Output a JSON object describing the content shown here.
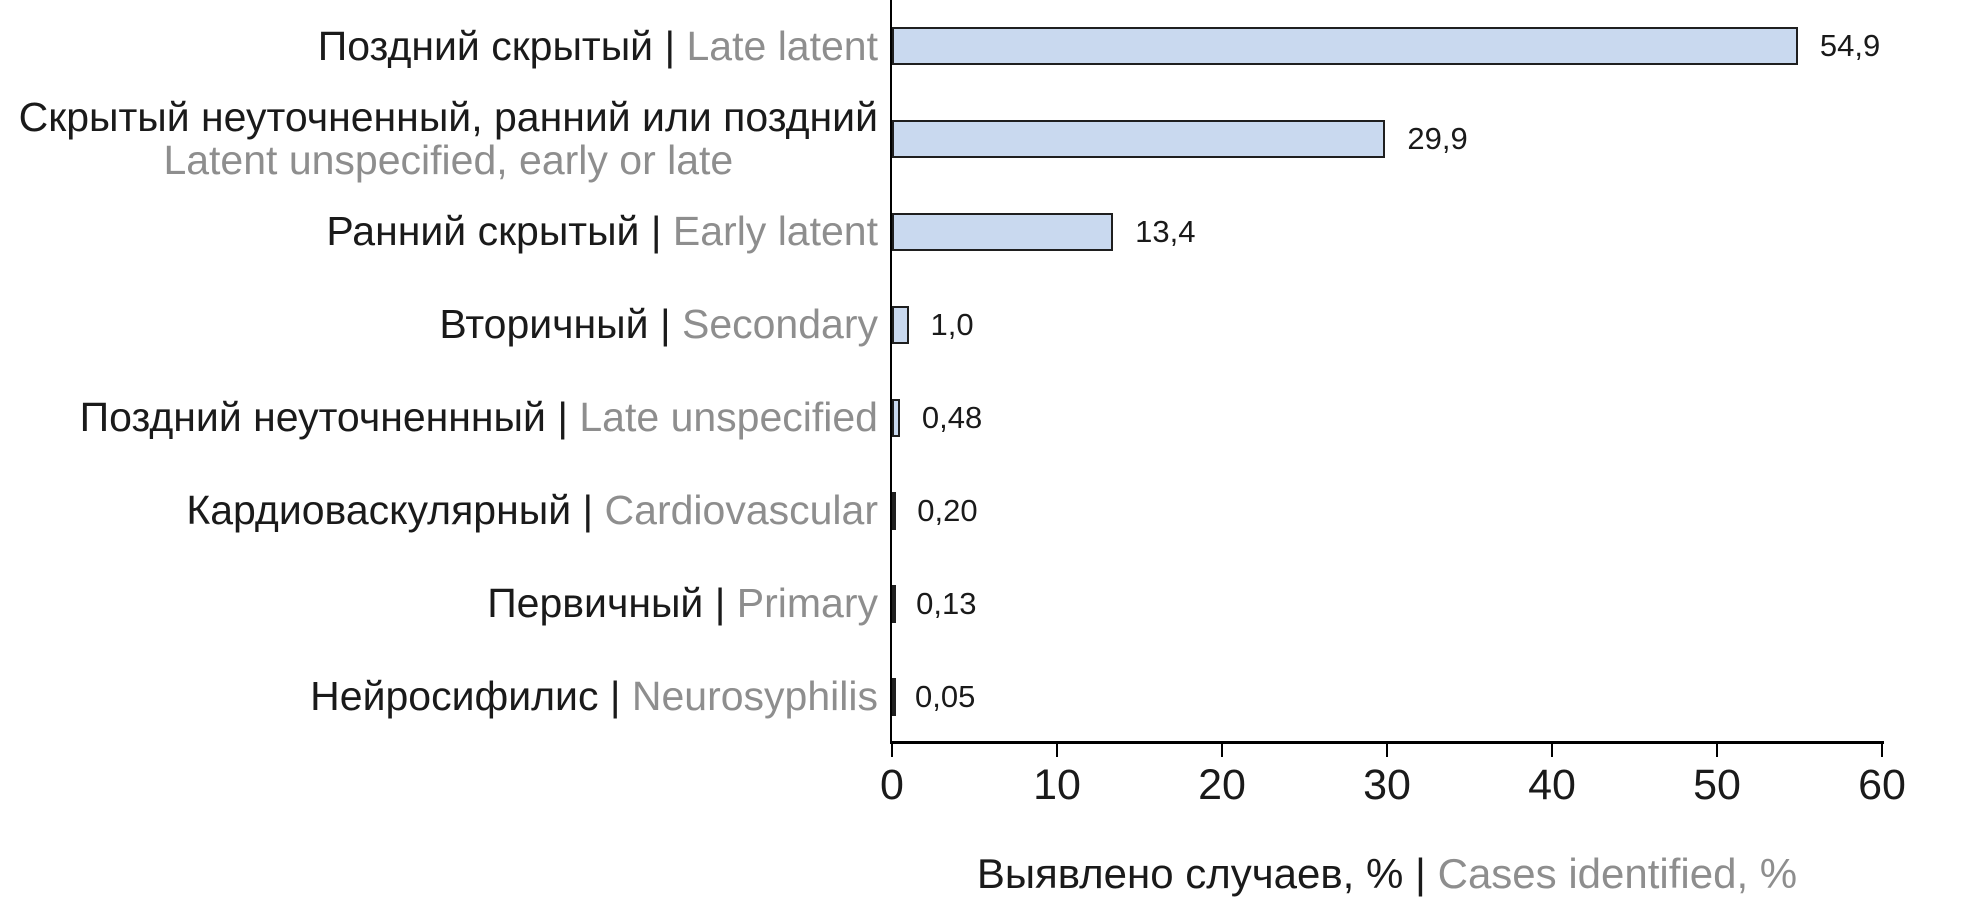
{
  "chart_data": {
    "type": "bar",
    "orientation": "horizontal",
    "title": "",
    "xlabel": {
      "ru": "Выявлено случаев, %",
      "separator": "|",
      "en": "Cases identified, %"
    },
    "xlim": [
      0,
      60
    ],
    "xticks": [
      0,
      10,
      20,
      30,
      40,
      50,
      60
    ],
    "xtick_labels": [
      "0",
      "10",
      "20",
      "30",
      "40",
      "50",
      "60"
    ],
    "grid": false,
    "legend": "none",
    "categories": [
      {
        "ru": "Поздний скрытый",
        "en": "Late latent",
        "two_line": false
      },
      {
        "ru": "Скрытый неуточненный, ранний или поздний",
        "en": "Latent unspecified, early or late",
        "two_line": true
      },
      {
        "ru": "Ранний скрытый",
        "en": "Early latent",
        "two_line": false
      },
      {
        "ru": "Вторичный",
        "en": "Secondary",
        "two_line": false
      },
      {
        "ru": "Поздний неуточненнный",
        "en": "Late unspecified",
        "two_line": false
      },
      {
        "ru": "Кардиоваскулярный",
        "en": "Cardiovascular",
        "two_line": false
      },
      {
        "ru": "Первичный",
        "en": "Primary",
        "two_line": false
      },
      {
        "ru": "Нейросифилис",
        "en": "Neurosyphilis",
        "two_line": false
      }
    ],
    "values": [
      54.9,
      29.9,
      13.4,
      1.0,
      0.48,
      0.2,
      0.13,
      0.05
    ],
    "value_labels": [
      "54,9",
      "29,9",
      "13,4",
      "1,0",
      "0,48",
      "0,20",
      "0,13",
      "0,05"
    ],
    "label_separator": "|",
    "colors": {
      "bar_fill": "#c9d9ef",
      "bar_border": "#1f1f1f",
      "axis": "#000000",
      "text_primary": "#1a1a1a",
      "text_secondary": "#8e8e8e",
      "background": "#ffffff"
    }
  }
}
